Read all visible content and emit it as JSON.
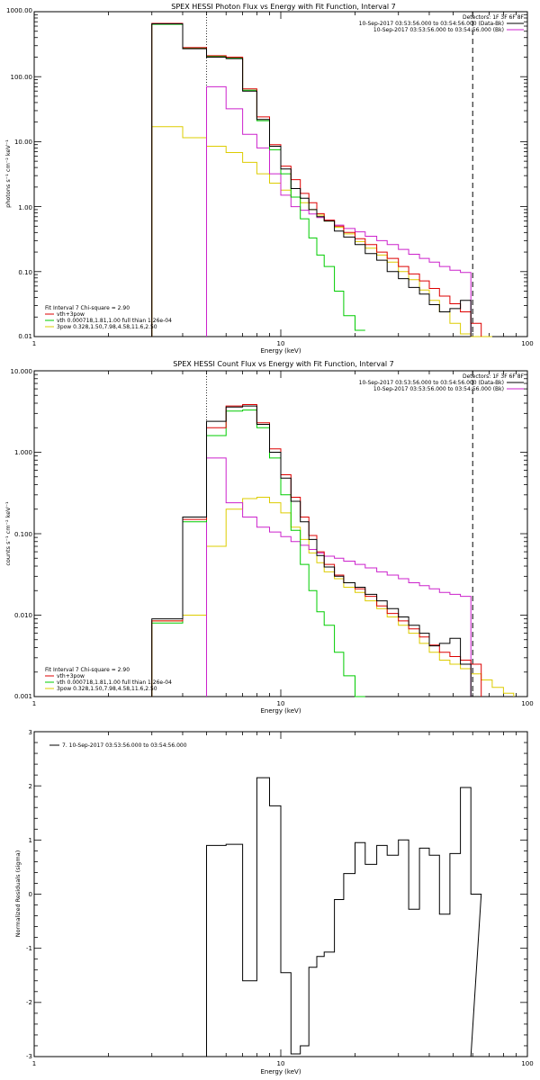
{
  "chart_data": [
    {
      "type": "line",
      "title": "SPEX HESSI Photon Flux vs Energy with Fit Function, Interval 7",
      "xlabel": "Energy (keV)",
      "ylabel": "photons s⁻¹ cm⁻² keV⁻¹",
      "x_scale": "log",
      "y_scale": "log",
      "xlim": [
        1,
        100
      ],
      "ylim": [
        0.01,
        1000
      ],
      "xticks": [
        "1",
        "10",
        "100"
      ],
      "yticks": [
        "0.01",
        "0.10",
        "1.00",
        "10.00",
        "100.00",
        "1000.00"
      ],
      "legend_top": [
        "Detectors: 1F 3F 6F 8F",
        "10-Sep-2017 03:53:56.000 to 03:54:56.000 (Data-Bk)",
        "10-Sep-2017 03:53:56.000 to 03:54:56.000 (Bk)"
      ],
      "legend_bottom": [
        "Fit Interval 7   Chi-square = 2.90",
        "vth+3pow",
        "vth 0.000718,1.81,1.00  full thian 1.26e-04",
        "3pow 0.328,1.50,7.98,4.58,11.6,2.50"
      ],
      "vlines": [
        5.0,
        60.0
      ],
      "edges": [
        3.0,
        4.0,
        5.0,
        6.0,
        7.0,
        8.0,
        9.0,
        10.0,
        11.0,
        12.0,
        13.0,
        14.0,
        15.0,
        16.5,
        18.0,
        20.0,
        22.0,
        24.5,
        27.0,
        30.0,
        33.0,
        36.5,
        40.0,
        44.0,
        48.5,
        53.5,
        59.0,
        65.0,
        72.0
      ],
      "series": [
        {
          "name": "Data-Bk",
          "color": "#000000",
          "end": 26,
          "values": [
            650,
            270,
            200,
            190,
            60,
            22,
            8.5,
            3.8,
            1.9,
            1.35,
            0.9,
            0.7,
            0.6,
            0.42,
            0.34,
            0.26,
            0.19,
            0.15,
            0.1,
            0.078,
            0.057,
            0.045,
            0.031,
            0.024,
            0.027,
            0.036
          ]
        },
        {
          "name": "Bk",
          "color": "#cc22cc",
          "end": 26,
          "values": [
            null,
            null,
            70,
            32,
            13,
            8,
            3.2,
            1.5,
            1.0,
            0.88,
            0.77,
            0.68,
            0.62,
            0.52,
            0.46,
            0.41,
            0.35,
            0.3,
            0.26,
            0.22,
            0.185,
            0.16,
            0.14,
            0.12,
            0.105,
            0.097
          ]
        },
        {
          "name": "vth+3pow",
          "color": "#dd0000",
          "end": 27,
          "values": [
            660,
            280,
            210,
            200,
            65,
            24,
            9,
            4.2,
            2.6,
            1.6,
            1.15,
            0.78,
            0.62,
            0.5,
            0.4,
            0.32,
            0.26,
            0.2,
            0.16,
            0.12,
            0.092,
            0.072,
            0.055,
            0.042,
            0.032,
            0.024,
            0.016
          ]
        },
        {
          "name": "vth",
          "color": "#00cc00",
          "end": 24,
          "values": [
            640,
            275,
            205,
            195,
            62,
            21,
            7.5,
            3.2,
            1.4,
            0.65,
            0.33,
            0.18,
            0.12,
            0.05,
            0.021,
            0.0125,
            null,
            null,
            null,
            null,
            null,
            null,
            null,
            null
          ]
        },
        {
          "name": "3pow",
          "color": "#ddcc00",
          "end": 28,
          "values": [
            17,
            11.5,
            8.5,
            6.8,
            4.8,
            3.2,
            2.3,
            1.8,
            1.4,
            1.15,
            0.9,
            0.74,
            0.6,
            0.48,
            0.38,
            0.29,
            0.23,
            0.18,
            0.14,
            0.1,
            0.075,
            0.052,
            0.036,
            0.024,
            0.016,
            0.011,
            0.0085,
            0.0075
          ]
        }
      ]
    },
    {
      "type": "line",
      "title": "SPEX HESSI Count Flux vs Energy with Fit Function, Interval 7",
      "xlabel": "Energy (keV)",
      "ylabel": "counts s⁻¹ cm⁻² keV⁻¹",
      "x_scale": "log",
      "y_scale": "log",
      "xlim": [
        1,
        100
      ],
      "ylim": [
        0.001,
        10
      ],
      "xticks": [
        "1",
        "10",
        "100"
      ],
      "yticks": [
        "0.001",
        "0.010",
        "0.100",
        "1.000",
        "10.000"
      ],
      "legend_top": [
        "Detectors: 1F 3F 6F 8F",
        "10-Sep-2017 03:53:56.000 to 03:54:56.000 (Data-Bk)",
        "10-Sep-2017 03:53:56.000 to 03:54:56.000 (Bk)"
      ],
      "legend_bottom": [
        "Fit Interval 7   Chi-square = 2.90",
        "vth+3pow",
        "vth 0.000718,1.81,1.00  full thian 1.26e-04",
        "3pow 0.328,1.50,7.98,4.58,11.6,2.50"
      ],
      "vlines": [
        5.0,
        60.0
      ],
      "edges": [
        3.0,
        4.0,
        5.0,
        6.0,
        7.0,
        8.0,
        9.0,
        10.0,
        11.0,
        12.0,
        13.0,
        14.0,
        15.0,
        16.5,
        18.0,
        20.0,
        22.0,
        24.5,
        27.0,
        30.0,
        33.0,
        36.5,
        40.0,
        44.0,
        48.5,
        53.5,
        59.0,
        65.0,
        72.0,
        80.0,
        88.0
      ],
      "series": [
        {
          "name": "Data-Bk",
          "color": "#000000",
          "end": 26,
          "values": [
            0.009,
            0.16,
            2.4,
            3.6,
            3.7,
            2.2,
            1.0,
            0.48,
            0.25,
            0.14,
            0.085,
            0.054,
            0.039,
            0.03,
            0.025,
            0.022,
            0.018,
            0.015,
            0.012,
            0.0095,
            0.0075,
            0.006,
            0.0042,
            0.0045,
            0.0052,
            0.0025
          ]
        },
        {
          "name": "Bk",
          "color": "#cc22cc",
          "end": 26,
          "values": [
            null,
            null,
            0.85,
            0.24,
            0.16,
            0.12,
            0.105,
            0.092,
            0.08,
            0.072,
            0.064,
            0.058,
            0.053,
            0.05,
            0.046,
            0.042,
            0.038,
            0.034,
            0.031,
            0.028,
            0.025,
            0.023,
            0.021,
            0.019,
            0.018,
            0.017
          ]
        },
        {
          "name": "vth+3pow",
          "color": "#dd0000",
          "end": 27,
          "values": [
            0.0085,
            0.15,
            2.0,
            3.7,
            3.85,
            2.3,
            1.1,
            0.53,
            0.28,
            0.16,
            0.095,
            0.06,
            0.042,
            0.031,
            0.025,
            0.021,
            0.017,
            0.013,
            0.0105,
            0.0085,
            0.0068,
            0.0054,
            0.0043,
            0.0035,
            0.0031,
            0.0028,
            0.0025
          ]
        },
        {
          "name": "vth",
          "color": "#00cc00",
          "end": 24,
          "values": [
            0.008,
            0.14,
            1.6,
            3.2,
            3.3,
            2.0,
            0.85,
            0.3,
            0.11,
            0.042,
            0.02,
            0.011,
            0.0075,
            0.0035,
            0.0018,
            0.001,
            null,
            null,
            null,
            null,
            null,
            null,
            null,
            null
          ]
        },
        {
          "name": "3pow",
          "color": "#ddcc00",
          "end": 30,
          "values": [
            0.0085,
            0.01,
            0.07,
            0.2,
            0.27,
            0.28,
            0.24,
            0.18,
            0.12,
            0.085,
            0.058,
            0.044,
            0.034,
            0.028,
            0.022,
            0.019,
            0.015,
            0.012,
            0.0095,
            0.0075,
            0.006,
            0.0045,
            0.0035,
            0.0028,
            0.0025,
            0.0022,
            0.0019,
            0.0016,
            0.0013,
            0.0011
          ]
        }
      ]
    },
    {
      "type": "line",
      "title": "",
      "xlabel": "Energy (keV)",
      "ylabel": "Normalized Residuals (sigma)",
      "x_scale": "log",
      "y_scale": "linear",
      "xlim": [
        1,
        100
      ],
      "ylim": [
        -3,
        3
      ],
      "xticks": [
        "1",
        "10",
        "100"
      ],
      "yticks": [
        "-3",
        "-2",
        "-1",
        "0",
        "1",
        "2",
        "3"
      ],
      "legend_top_left": "7. 10-Sep-2017 03:53:56.000 to 03:54:56.000",
      "edges": [
        5.0,
        6.0,
        7.0,
        8.0,
        9.0,
        10.0,
        11.0,
        12.0,
        13.0,
        14.0,
        15.0,
        16.5,
        18.0,
        20.0,
        22.0,
        24.5,
        27.0,
        30.0,
        33.0,
        36.5,
        40.0,
        44.0,
        48.5,
        53.5,
        59.0,
        65.0
      ],
      "series": [
        {
          "name": "residuals",
          "color": "#000000",
          "values": [
            0.9,
            0.92,
            -1.6,
            2.15,
            1.63,
            -1.45,
            -2.95,
            -2.8,
            -1.35,
            -1.15,
            -1.07,
            -0.1,
            0.38,
            0.95,
            0.55,
            0.9,
            0.72,
            1.0,
            -0.28,
            0.85,
            0.72,
            -0.37,
            0.75,
            1.97,
            0.0
          ]
        }
      ]
    }
  ]
}
